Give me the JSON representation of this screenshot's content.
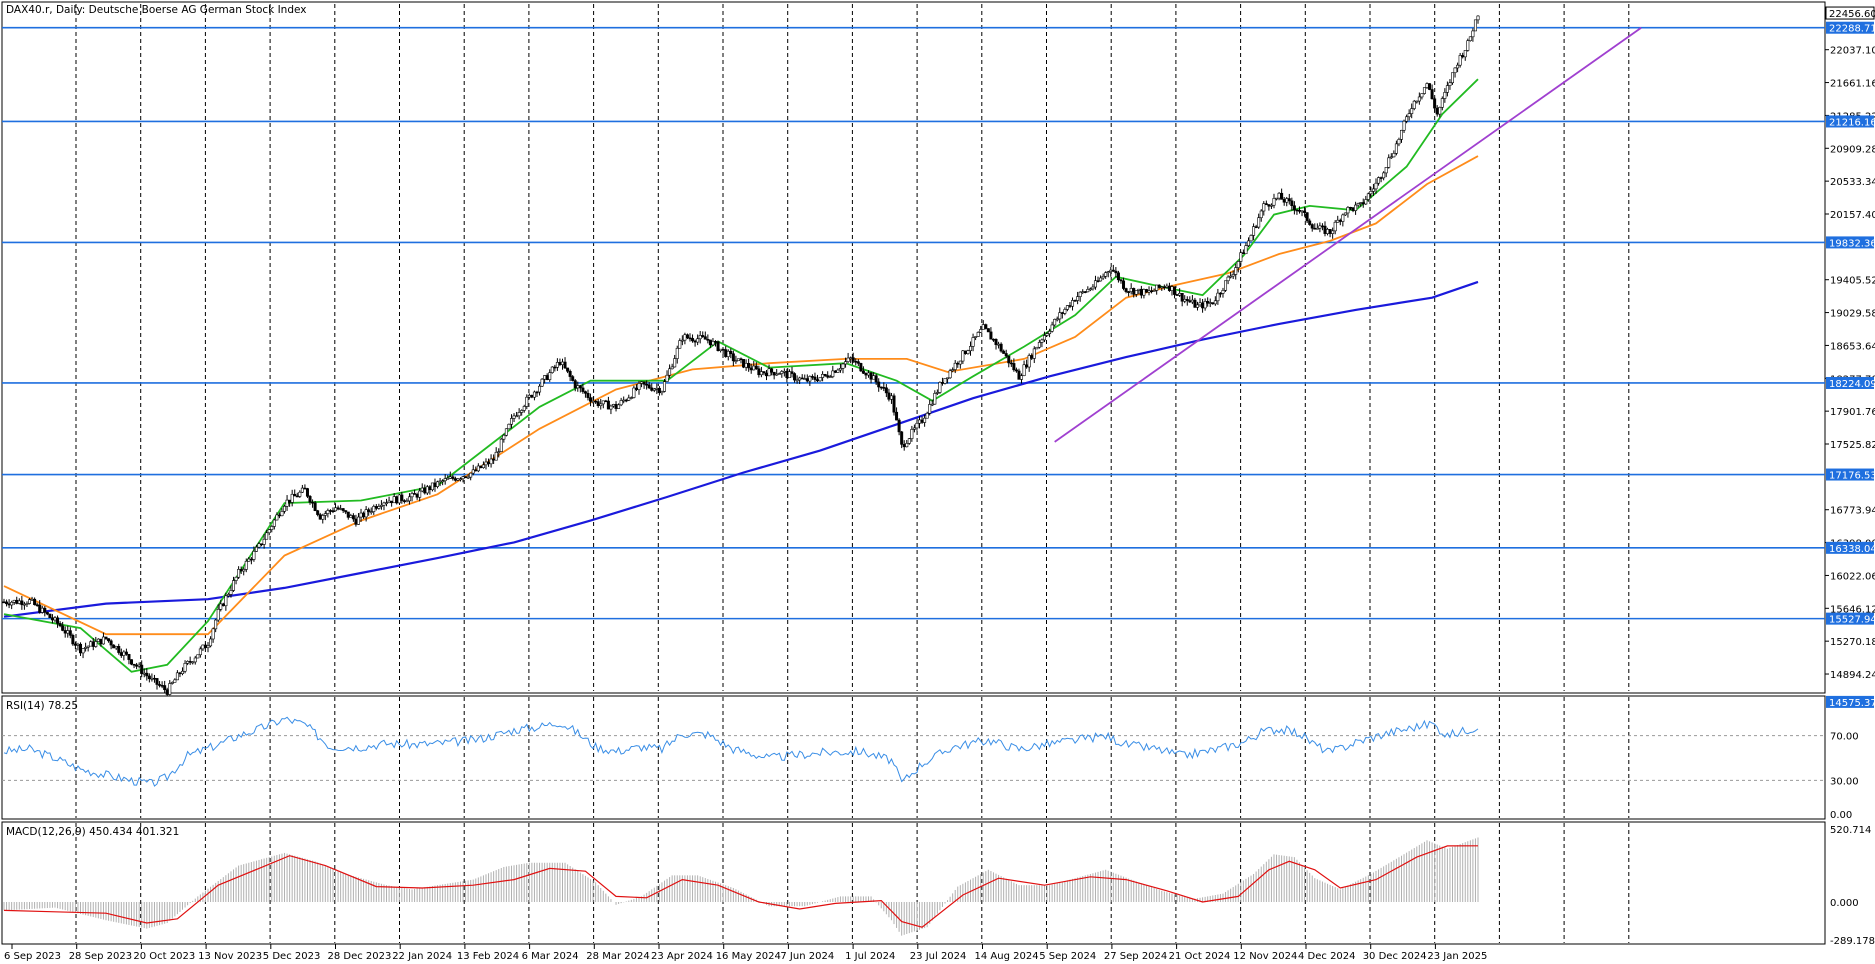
{
  "header": {
    "title": "DAX40.r, Daily:  Deutsche Boerse AG German Stock Index"
  },
  "colors": {
    "bull": "#ffffff",
    "bear": "#000000",
    "ma_fast": "#22bb22",
    "ma_mid": "#ff8c1a",
    "ma_slow": "#1a1adc",
    "trend": "#a040d0",
    "hline": "#1f6fdf",
    "rsi": "#3a8ee6",
    "macd_signal": "#e01010",
    "macd_hist": "#b0b0b0",
    "tag_bg": "#1f6fdf",
    "last_bg": "#ffffff"
  },
  "chart_data": {
    "type": "candlestick",
    "title": "DAX40.r, Daily:  Deutsche Boerse AG German Stock Index",
    "price_axis": {
      "range": [
        14700,
        22560
      ],
      "ticks": [
        "22037.10",
        "21661.16",
        "21285.22",
        "20909.28",
        "20533.34",
        "20157.40",
        "19405.52",
        "19029.58",
        "18653.64",
        "18277.70",
        "17901.76",
        "17525.82",
        "16773.94",
        "16398.00",
        "16022.06",
        "15646.12",
        "15270.18",
        "14894.24"
      ]
    },
    "date_labels": [
      "6 Sep 2023",
      "28 Sep 2023",
      "20 Oct 2023",
      "13 Nov 2023",
      "5 Dec 2023",
      "28 Dec 2023",
      "22 Jan 2024",
      "13 Feb 2024",
      "6 Mar 2024",
      "28 Mar 2024",
      "23 Apr 2024",
      "16 May 2024",
      "7 Jun 2024",
      "1 Jul 2024",
      "23 Jul 2024",
      "14 Aug 2024",
      "5 Sep 2024",
      "27 Sep 2024",
      "21 Oct 2024",
      "12 Nov 2024",
      "4 Dec 2024",
      "30 Dec 2024",
      "23 Jan 2025"
    ],
    "levels": [
      "22288.71",
      "21216.16",
      "19832.36",
      "18224.09",
      "17176.53",
      "16338.04",
      "15527.94",
      "14575.37"
    ],
    "last_price": "22456.60",
    "close_path": [
      [
        0,
        15720
      ],
      [
        10,
        15730
      ],
      [
        22,
        15450
      ],
      [
        30,
        15180
      ],
      [
        40,
        15300
      ],
      [
        48,
        15100
      ],
      [
        58,
        14820
      ],
      [
        64,
        14700
      ],
      [
        70,
        14950
      ],
      [
        80,
        15250
      ],
      [
        84,
        15600
      ],
      [
        92,
        16050
      ],
      [
        100,
        16350
      ],
      [
        110,
        16850
      ],
      [
        118,
        17000
      ],
      [
        124,
        16700
      ],
      [
        130,
        16800
      ],
      [
        138,
        16650
      ],
      [
        148,
        16870
      ],
      [
        160,
        16920
      ],
      [
        172,
        17100
      ],
      [
        184,
        17200
      ],
      [
        192,
        17350
      ],
      [
        200,
        17850
      ],
      [
        210,
        18200
      ],
      [
        218,
        18470
      ],
      [
        224,
        18200
      ],
      [
        232,
        18000
      ],
      [
        240,
        17950
      ],
      [
        250,
        18200
      ],
      [
        258,
        18150
      ],
      [
        266,
        18750
      ],
      [
        276,
        18720
      ],
      [
        286,
        18500
      ],
      [
        296,
        18350
      ],
      [
        304,
        18350
      ],
      [
        314,
        18250
      ],
      [
        322,
        18300
      ],
      [
        332,
        18500
      ],
      [
        340,
        18300
      ],
      [
        348,
        18050
      ],
      [
        352,
        17500
      ],
      [
        360,
        17800
      ],
      [
        368,
        18250
      ],
      [
        376,
        18550
      ],
      [
        384,
        18850
      ],
      [
        390,
        18650
      ],
      [
        398,
        18300
      ],
      [
        406,
        18700
      ],
      [
        414,
        19000
      ],
      [
        420,
        19200
      ],
      [
        428,
        19350
      ],
      [
        434,
        19550
      ],
      [
        440,
        19300
      ],
      [
        448,
        19250
      ],
      [
        456,
        19350
      ],
      [
        462,
        19200
      ],
      [
        468,
        19100
      ],
      [
        474,
        19150
      ],
      [
        482,
        19500
      ],
      [
        488,
        19850
      ],
      [
        494,
        20250
      ],
      [
        500,
        20350
      ],
      [
        508,
        20200
      ],
      [
        514,
        20000
      ],
      [
        520,
        19950
      ],
      [
        526,
        20200
      ],
      [
        532,
        20250
      ],
      [
        538,
        20500
      ],
      [
        546,
        20950
      ],
      [
        552,
        21400
      ],
      [
        558,
        21650
      ],
      [
        562,
        21300
      ],
      [
        566,
        21600
      ],
      [
        570,
        21900
      ],
      [
        574,
        22100
      ],
      [
        578,
        22456
      ]
    ],
    "ma_fast_values": [
      [
        0,
        15580
      ],
      [
        30,
        15420
      ],
      [
        50,
        14920
      ],
      [
        64,
        15000
      ],
      [
        80,
        15500
      ],
      [
        110,
        16850
      ],
      [
        140,
        16880
      ],
      [
        170,
        17050
      ],
      [
        210,
        17950
      ],
      [
        230,
        18250
      ],
      [
        260,
        18250
      ],
      [
        280,
        18700
      ],
      [
        300,
        18400
      ],
      [
        330,
        18450
      ],
      [
        350,
        18250
      ],
      [
        364,
        18020
      ],
      [
        380,
        18300
      ],
      [
        400,
        18640
      ],
      [
        420,
        19000
      ],
      [
        436,
        19440
      ],
      [
        450,
        19350
      ],
      [
        470,
        19230
      ],
      [
        486,
        19680
      ],
      [
        498,
        20150
      ],
      [
        512,
        20250
      ],
      [
        530,
        20200
      ],
      [
        550,
        20700
      ],
      [
        564,
        21300
      ],
      [
        578,
        21700
      ]
    ],
    "ma_mid_values": [
      [
        0,
        15900
      ],
      [
        40,
        15350
      ],
      [
        80,
        15350
      ],
      [
        110,
        16250
      ],
      [
        140,
        16650
      ],
      [
        170,
        16950
      ],
      [
        210,
        17700
      ],
      [
        240,
        18150
      ],
      [
        270,
        18380
      ],
      [
        300,
        18450
      ],
      [
        330,
        18500
      ],
      [
        354,
        18500
      ],
      [
        370,
        18350
      ],
      [
        400,
        18500
      ],
      [
        420,
        18750
      ],
      [
        440,
        19200
      ],
      [
        460,
        19350
      ],
      [
        480,
        19480
      ],
      [
        500,
        19700
      ],
      [
        520,
        19850
      ],
      [
        538,
        20050
      ],
      [
        558,
        20500
      ],
      [
        578,
        20820
      ]
    ],
    "ma_slow_values": [
      [
        0,
        15550
      ],
      [
        40,
        15700
      ],
      [
        80,
        15750
      ],
      [
        110,
        15880
      ],
      [
        140,
        16050
      ],
      [
        170,
        16220
      ],
      [
        200,
        16400
      ],
      [
        230,
        16650
      ],
      [
        260,
        16920
      ],
      [
        290,
        17200
      ],
      [
        320,
        17450
      ],
      [
        350,
        17750
      ],
      [
        380,
        18050
      ],
      [
        410,
        18300
      ],
      [
        440,
        18520
      ],
      [
        470,
        18720
      ],
      [
        500,
        18900
      ],
      [
        530,
        19060
      ],
      [
        560,
        19200
      ],
      [
        578,
        19380
      ]
    ],
    "trend_line": [
      [
        412,
        17550
      ],
      [
        642,
        22288
      ]
    ],
    "rsi": {
      "label": "RSI(14) 78.25",
      "ticks": [
        "100.00",
        "70.00",
        "30.00",
        "0.00"
      ],
      "levels": [
        30,
        70
      ],
      "values": [
        [
          0,
          56
        ],
        [
          10,
          58
        ],
        [
          20,
          50
        ],
        [
          30,
          40
        ],
        [
          40,
          35
        ],
        [
          50,
          30
        ],
        [
          58,
          27
        ],
        [
          64,
          33
        ],
        [
          72,
          52
        ],
        [
          84,
          62
        ],
        [
          92,
          70
        ],
        [
          100,
          76
        ],
        [
          110,
          85
        ],
        [
          118,
          80
        ],
        [
          128,
          60
        ],
        [
          140,
          60
        ],
        [
          150,
          63
        ],
        [
          160,
          62
        ],
        [
          170,
          63
        ],
        [
          184,
          66
        ],
        [
          192,
          70
        ],
        [
          200,
          75
        ],
        [
          210,
          78
        ],
        [
          218,
          82
        ],
        [
          224,
          74
        ],
        [
          232,
          60
        ],
        [
          240,
          56
        ],
        [
          250,
          60
        ],
        [
          258,
          58
        ],
        [
          266,
          72
        ],
        [
          276,
          71
        ],
        [
          286,
          58
        ],
        [
          300,
          50
        ],
        [
          312,
          53
        ],
        [
          322,
          55
        ],
        [
          336,
          56
        ],
        [
          348,
          48
        ],
        [
          352,
          28
        ],
        [
          360,
          45
        ],
        [
          372,
          60
        ],
        [
          386,
          66
        ],
        [
          398,
          58
        ],
        [
          408,
          62
        ],
        [
          420,
          66
        ],
        [
          432,
          70
        ],
        [
          440,
          62
        ],
        [
          452,
          58
        ],
        [
          462,
          52
        ],
        [
          474,
          57
        ],
        [
          486,
          64
        ],
        [
          494,
          74
        ],
        [
          500,
          76
        ],
        [
          508,
          72
        ],
        [
          514,
          62
        ],
        [
          520,
          55
        ],
        [
          530,
          64
        ],
        [
          542,
          72
        ],
        [
          552,
          77
        ],
        [
          560,
          81
        ],
        [
          566,
          70
        ],
        [
          572,
          74
        ],
        [
          578,
          78
        ]
      ]
    },
    "macd": {
      "label": "MACD(12,26,9) 450.434 401.321",
      "ticks": [
        "520.714",
        "0.000",
        "-289.178"
      ],
      "hist": [
        [
          0,
          -60
        ],
        [
          20,
          -40
        ],
        [
          40,
          -130
        ],
        [
          56,
          -190
        ],
        [
          64,
          -150
        ],
        [
          76,
          40
        ],
        [
          92,
          260
        ],
        [
          110,
          350
        ],
        [
          122,
          290
        ],
        [
          134,
          200
        ],
        [
          150,
          120
        ],
        [
          160,
          90
        ],
        [
          170,
          120
        ],
        [
          184,
          160
        ],
        [
          196,
          250
        ],
        [
          206,
          280
        ],
        [
          220,
          280
        ],
        [
          232,
          140
        ],
        [
          240,
          -20
        ],
        [
          250,
          40
        ],
        [
          262,
          190
        ],
        [
          272,
          190
        ],
        [
          286,
          100
        ],
        [
          300,
          -30
        ],
        [
          314,
          -30
        ],
        [
          328,
          40
        ],
        [
          340,
          40
        ],
        [
          348,
          -130
        ],
        [
          352,
          -240
        ],
        [
          362,
          -180
        ],
        [
          374,
          110
        ],
        [
          386,
          230
        ],
        [
          398,
          120
        ],
        [
          410,
          120
        ],
        [
          420,
          170
        ],
        [
          432,
          230
        ],
        [
          442,
          160
        ],
        [
          454,
          80
        ],
        [
          466,
          20
        ],
        [
          478,
          60
        ],
        [
          490,
          200
        ],
        [
          498,
          340
        ],
        [
          506,
          320
        ],
        [
          514,
          170
        ],
        [
          524,
          90
        ],
        [
          536,
          200
        ],
        [
          548,
          330
        ],
        [
          558,
          440
        ],
        [
          566,
          380
        ],
        [
          572,
          420
        ],
        [
          578,
          460
        ]
      ],
      "signal": [
        [
          0,
          -60
        ],
        [
          20,
          -70
        ],
        [
          40,
          -80
        ],
        [
          56,
          -150
        ],
        [
          68,
          -120
        ],
        [
          84,
          120
        ],
        [
          100,
          240
        ],
        [
          112,
          330
        ],
        [
          126,
          260
        ],
        [
          146,
          110
        ],
        [
          164,
          100
        ],
        [
          184,
          120
        ],
        [
          200,
          160
        ],
        [
          214,
          240
        ],
        [
          228,
          220
        ],
        [
          240,
          40
        ],
        [
          252,
          30
        ],
        [
          266,
          160
        ],
        [
          280,
          120
        ],
        [
          296,
          0
        ],
        [
          312,
          -50
        ],
        [
          326,
          -10
        ],
        [
          344,
          10
        ],
        [
          352,
          -140
        ],
        [
          360,
          -180
        ],
        [
          376,
          50
        ],
        [
          390,
          170
        ],
        [
          408,
          120
        ],
        [
          426,
          180
        ],
        [
          440,
          160
        ],
        [
          456,
          80
        ],
        [
          470,
          0
        ],
        [
          484,
          40
        ],
        [
          496,
          230
        ],
        [
          504,
          290
        ],
        [
          514,
          230
        ],
        [
          524,
          100
        ],
        [
          538,
          160
        ],
        [
          554,
          320
        ],
        [
          566,
          400
        ],
        [
          578,
          401
        ]
      ]
    }
  }
}
